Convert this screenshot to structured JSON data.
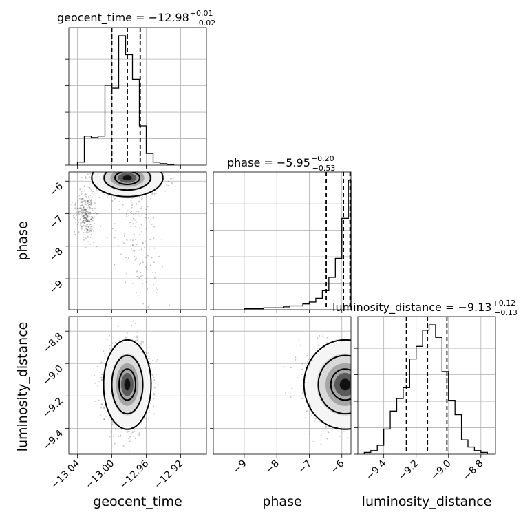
{
  "chart_data": {
    "type": "corner",
    "parameters": [
      "geocent_time",
      "phase",
      "luminosity_distance"
    ],
    "axis_labels": {
      "geocent_time": "geocent_time",
      "phase": "phase",
      "luminosity_distance": "luminosity_distance"
    },
    "ranges": {
      "geocent_time": [
        -13.05,
        -12.89
      ],
      "phase": [
        -9.95,
        -5.72
      ],
      "luminosity_distance": [
        -9.56,
        -8.71
      ]
    },
    "ticks": {
      "geocent_time": [
        -13.04,
        -13.0,
        -12.96,
        -12.92
      ],
      "phase": [
        -9,
        -8,
        -7,
        -6
      ],
      "luminosity_distance": [
        -9.4,
        -9.2,
        -9.0,
        -8.8
      ]
    },
    "tick_labels": {
      "geocent_time": [
        "−13.04",
        "−13.00",
        "−12.96",
        "−12.92"
      ],
      "phase": [
        "−9",
        "−8",
        "−7",
        "−6"
      ],
      "luminosity_distance": [
        "−9.4",
        "−9.2",
        "−9.0",
        "−8.8"
      ]
    },
    "titles": [
      {
        "param": "geocent_time",
        "text": "geocent_time = −12.98",
        "sup": "+0.01",
        "sub": "−0.02"
      },
      {
        "param": "phase",
        "text": "phase = −5.95",
        "sup": "+0.20",
        "sub": "−0.53"
      },
      {
        "param": "luminosity_distance",
        "text": "luminosity_distance = −9.13",
        "sup": "+0.12",
        "sub": "−0.13"
      }
    ],
    "quantiles": {
      "geocent_time": [
        -13.0,
        -12.982,
        -12.967
      ],
      "phase": [
        -6.48,
        -5.95,
        -5.75
      ],
      "luminosity_distance": [
        -9.26,
        -9.13,
        -9.01
      ]
    },
    "histograms": {
      "geocent_time": {
        "edges": [
          -13.04,
          -13.032,
          -13.024,
          -13.016,
          -13.008,
          -13.0,
          -12.992,
          -12.984,
          -12.976,
          -12.968,
          -12.96,
          -12.952,
          -12.944,
          -12.936,
          -12.928
        ],
        "counts": [
          2,
          20,
          19,
          20,
          55,
          53,
          89,
          76,
          59,
          27,
          8,
          2,
          1,
          0.5
        ]
      },
      "phase": {
        "edges": [
          -9.0,
          -8.8,
          -8.6,
          -8.4,
          -8.2,
          -8.0,
          -7.8,
          -7.6,
          -7.4,
          -7.2,
          -7.0,
          -6.8,
          -6.6,
          -6.4,
          -6.2,
          -6.0,
          -5.8,
          -5.72
        ],
        "counts": [
          0.5,
          0.5,
          0.5,
          1,
          1,
          1,
          1.5,
          2,
          2,
          3,
          4,
          6,
          10,
          17,
          27,
          48,
          68
        ]
      },
      "luminosity_distance": {
        "edges": [
          -9.52,
          -9.48,
          -9.44,
          -9.4,
          -9.36,
          -9.32,
          -9.28,
          -9.24,
          -9.2,
          -9.16,
          -9.12,
          -9.08,
          -9.04,
          -9.0,
          -8.96,
          -8.92,
          -8.88,
          -8.84,
          -8.8,
          -8.76
        ],
        "counts": [
          1,
          2,
          5,
          14,
          24,
          31,
          37,
          53,
          60,
          69,
          72,
          65,
          46,
          30,
          22,
          8,
          4,
          2,
          1
        ]
      }
    },
    "scatter_2d": [
      {
        "x": "geocent_time",
        "y": "phase",
        "center": [
          -12.982,
          -5.9
        ],
        "spread": [
          0.018,
          0.25
        ],
        "secondary_center": [
          -13.03,
          -7.0
        ],
        "secondary_spread": [
          0.006,
          0.35
        ],
        "tail_to": [
          -12.96,
          -9.4
        ]
      },
      {
        "x": "geocent_time",
        "y": "luminosity_distance",
        "center": [
          -12.982,
          -9.13
        ],
        "spread": [
          0.012,
          0.12
        ]
      },
      {
        "x": "phase",
        "y": "luminosity_distance",
        "center": [
          -5.9,
          -9.13
        ],
        "spread": [
          0.55,
          0.12
        ]
      }
    ],
    "grid": true
  }
}
